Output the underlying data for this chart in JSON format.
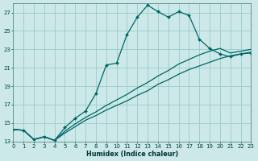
{
  "xlabel": "Humidex (Indice chaleur)",
  "background_color": "#cce8e8",
  "grid_color": "#99cccc",
  "line_color": "#006666",
  "xlim": [
    0,
    23
  ],
  "ylim": [
    13,
    28
  ],
  "yticks": [
    13,
    15,
    17,
    19,
    21,
    23,
    25,
    27
  ],
  "xticks": [
    0,
    1,
    2,
    3,
    4,
    5,
    6,
    7,
    8,
    9,
    10,
    11,
    12,
    13,
    14,
    15,
    16,
    17,
    18,
    19,
    20,
    21,
    22,
    23
  ],
  "line1_x": [
    0,
    1,
    2,
    3,
    4,
    5,
    6,
    7,
    8,
    9,
    10,
    11,
    12,
    13,
    14,
    15,
    16,
    17,
    18,
    19,
    20,
    21,
    22,
    23
  ],
  "line1_y": [
    14.3,
    14.2,
    13.2,
    13.5,
    13.1,
    14.5,
    15.5,
    16.3,
    18.2,
    21.3,
    21.5,
    24.6,
    26.5,
    27.8,
    27.1,
    26.5,
    27.1,
    26.7,
    24.1,
    23.1,
    22.5,
    22.2,
    22.5,
    22.6
  ],
  "line2_x": [
    0,
    1,
    2,
    3,
    4,
    5,
    6,
    7,
    8,
    9,
    10,
    11,
    12,
    13,
    14,
    15,
    16,
    17,
    18,
    19,
    20,
    21,
    22,
    23
  ],
  "line2_y": [
    14.3,
    14.2,
    13.2,
    13.5,
    13.1,
    14.1,
    14.9,
    15.6,
    16.2,
    16.9,
    17.5,
    18.1,
    18.8,
    19.4,
    20.1,
    20.7,
    21.4,
    21.9,
    22.4,
    22.8,
    23.1,
    22.6,
    22.8,
    23.0
  ],
  "line3_x": [
    0,
    1,
    2,
    3,
    4,
    5,
    6,
    7,
    8,
    9,
    10,
    11,
    12,
    13,
    14,
    15,
    16,
    17,
    18,
    19,
    20,
    21,
    22,
    23
  ],
  "line3_y": [
    14.3,
    14.2,
    13.2,
    13.5,
    13.1,
    13.9,
    14.6,
    15.3,
    15.8,
    16.4,
    16.9,
    17.4,
    18.0,
    18.5,
    19.2,
    19.7,
    20.3,
    20.8,
    21.2,
    21.6,
    22.0,
    22.3,
    22.5,
    22.7
  ]
}
